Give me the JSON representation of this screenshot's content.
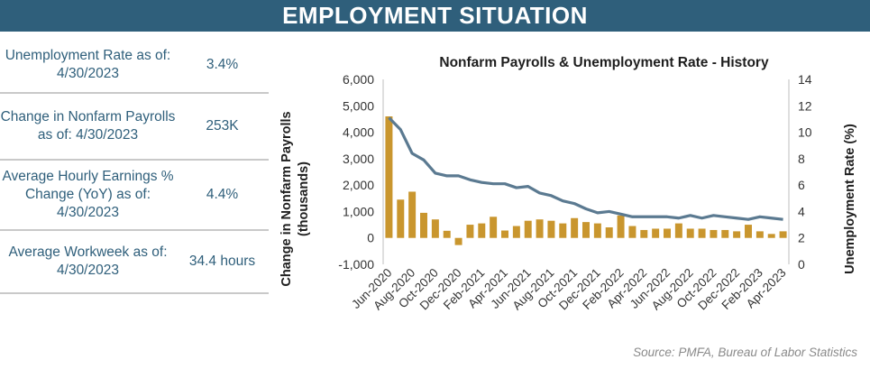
{
  "header": {
    "title": "EMPLOYMENT SITUATION"
  },
  "stats": [
    {
      "label": "Unemployment Rate as of: 4/30/2023",
      "value": "3.4%"
    },
    {
      "label": "Change in Nonfarm Payrolls as of: 4/30/2023",
      "value": "253K"
    },
    {
      "label": "Average Hourly Earnings % Change (YoY) as of: 4/30/2023",
      "value": "4.4%"
    },
    {
      "label": "Average Workweek as of: 4/30/2023",
      "value": "34.4 hours"
    }
  ],
  "colors": {
    "banner": "#2f5f7b",
    "bar": "#c9962e",
    "line": "#5b7a91",
    "text": "#2f5f7b"
  },
  "chart_data": {
    "type": "bar",
    "title": "Nonfarm Payrolls & Unemployment Rate - History",
    "xlabel": "",
    "ylabel": "Change in Nonfarm Payrolls (thousands)",
    "y2label": "Unemployment Rate (%)",
    "ylim": [
      -1000,
      6000
    ],
    "y2lim": [
      0,
      14
    ],
    "yticks": [
      "-1,000",
      "0",
      "1,000",
      "2,000",
      "3,000",
      "4,000",
      "5,000",
      "6,000"
    ],
    "y2ticks": [
      "0",
      "2",
      "4",
      "6",
      "8",
      "10",
      "12",
      "14"
    ],
    "categories": [
      "Jun-2020",
      "Jul-2020",
      "Aug-2020",
      "Sep-2020",
      "Oct-2020",
      "Nov-2020",
      "Dec-2020",
      "Jan-2021",
      "Feb-2021",
      "Mar-2021",
      "Apr-2021",
      "May-2021",
      "Jun-2021",
      "Jul-2021",
      "Aug-2021",
      "Sep-2021",
      "Oct-2021",
      "Nov-2021",
      "Dec-2021",
      "Jan-2022",
      "Feb-2022",
      "Mar-2022",
      "Apr-2022",
      "May-2022",
      "Jun-2022",
      "Jul-2022",
      "Aug-2022",
      "Sep-2022",
      "Oct-2022",
      "Nov-2022",
      "Dec-2022",
      "Jan-2023",
      "Feb-2023",
      "Mar-2023",
      "Apr-2023"
    ],
    "xtick_labels": [
      "Jun-2020",
      "Aug-2020",
      "Oct-2020",
      "Dec-2020",
      "Feb-2021",
      "Apr-2021",
      "Jun-2021",
      "Aug-2021",
      "Oct-2021",
      "Dec-2021",
      "Feb-2022",
      "Apr-2022",
      "Jun-2022",
      "Aug-2022",
      "Oct-2022",
      "Dec-2022",
      "Feb-2023",
      "Apr-2023"
    ],
    "series": [
      {
        "name": "Change in Nonfarm Payrolls",
        "type": "bar",
        "axis": "left",
        "values": [
          4600,
          1450,
          1750,
          950,
          700,
          270,
          -270,
          500,
          550,
          800,
          280,
          450,
          650,
          700,
          650,
          550,
          750,
          600,
          550,
          400,
          850,
          450,
          300,
          350,
          350,
          550,
          350,
          350,
          300,
          300,
          250,
          500,
          250,
          150,
          250
        ]
      },
      {
        "name": "Unemployment Rate",
        "type": "line",
        "axis": "right",
        "values": [
          11.1,
          10.2,
          8.4,
          7.9,
          6.9,
          6.7,
          6.7,
          6.4,
          6.2,
          6.1,
          6.1,
          5.8,
          5.9,
          5.4,
          5.2,
          4.8,
          4.6,
          4.2,
          3.9,
          4.0,
          3.8,
          3.6,
          3.6,
          3.6,
          3.6,
          3.5,
          3.7,
          3.5,
          3.7,
          3.6,
          3.5,
          3.4,
          3.6,
          3.5,
          3.4
        ]
      }
    ]
  },
  "source": "Source:  PMFA, Bureau of Labor Statistics"
}
